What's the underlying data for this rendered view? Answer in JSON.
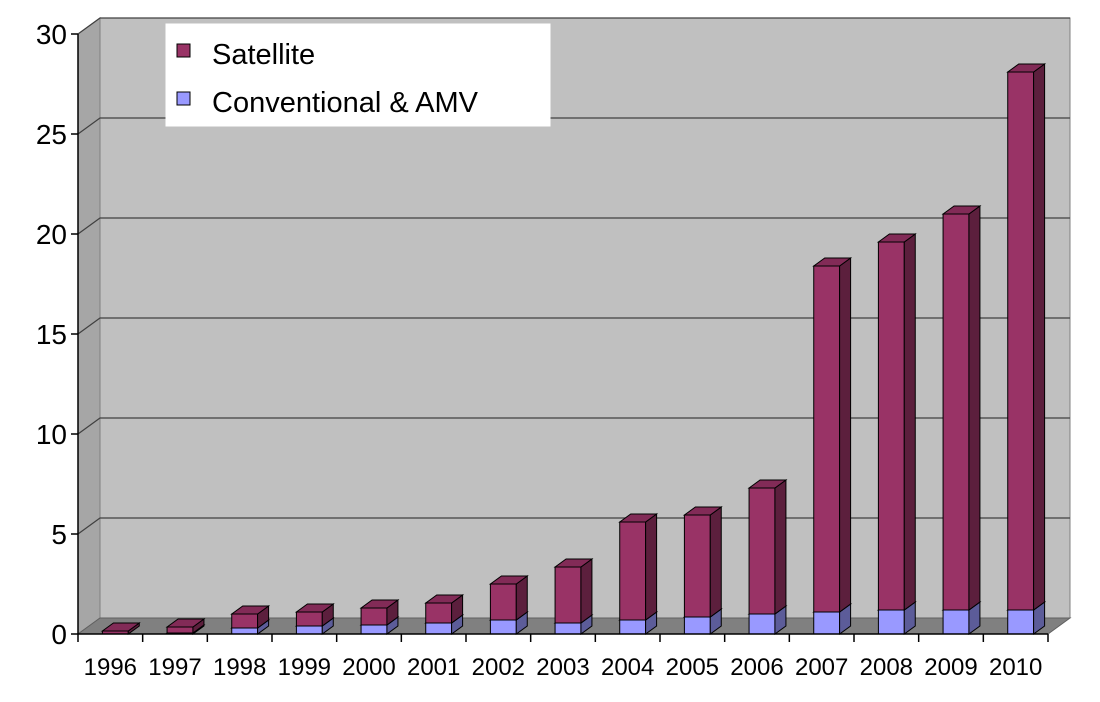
{
  "chart_data": {
    "type": "bar",
    "stacked": true,
    "style": "3d",
    "categories": [
      "1996",
      "1997",
      "1998",
      "1999",
      "2000",
      "2001",
      "2002",
      "2003",
      "2004",
      "2005",
      "2006",
      "2007",
      "2008",
      "2009",
      "2010"
    ],
    "series": [
      {
        "name": "Conventional & AMV",
        "color": "#9999ff",
        "values": [
          0.0,
          0.05,
          0.3,
          0.4,
          0.45,
          0.55,
          0.7,
          0.55,
          0.7,
          0.85,
          1.0,
          1.1,
          1.2,
          1.2,
          1.2
        ]
      },
      {
        "name": "Satellite",
        "color": "#993366",
        "values": [
          0.15,
          0.3,
          0.7,
          0.7,
          0.85,
          1.0,
          1.8,
          2.8,
          4.9,
          5.1,
          6.3,
          17.3,
          18.4,
          19.8,
          26.9
        ]
      }
    ],
    "ylim": [
      0,
      30
    ],
    "yticks": [
      0,
      5,
      10,
      15,
      20,
      25,
      30
    ],
    "grid": true,
    "legend_position": "top-left",
    "title": "",
    "xlabel": "",
    "ylabel": ""
  }
}
